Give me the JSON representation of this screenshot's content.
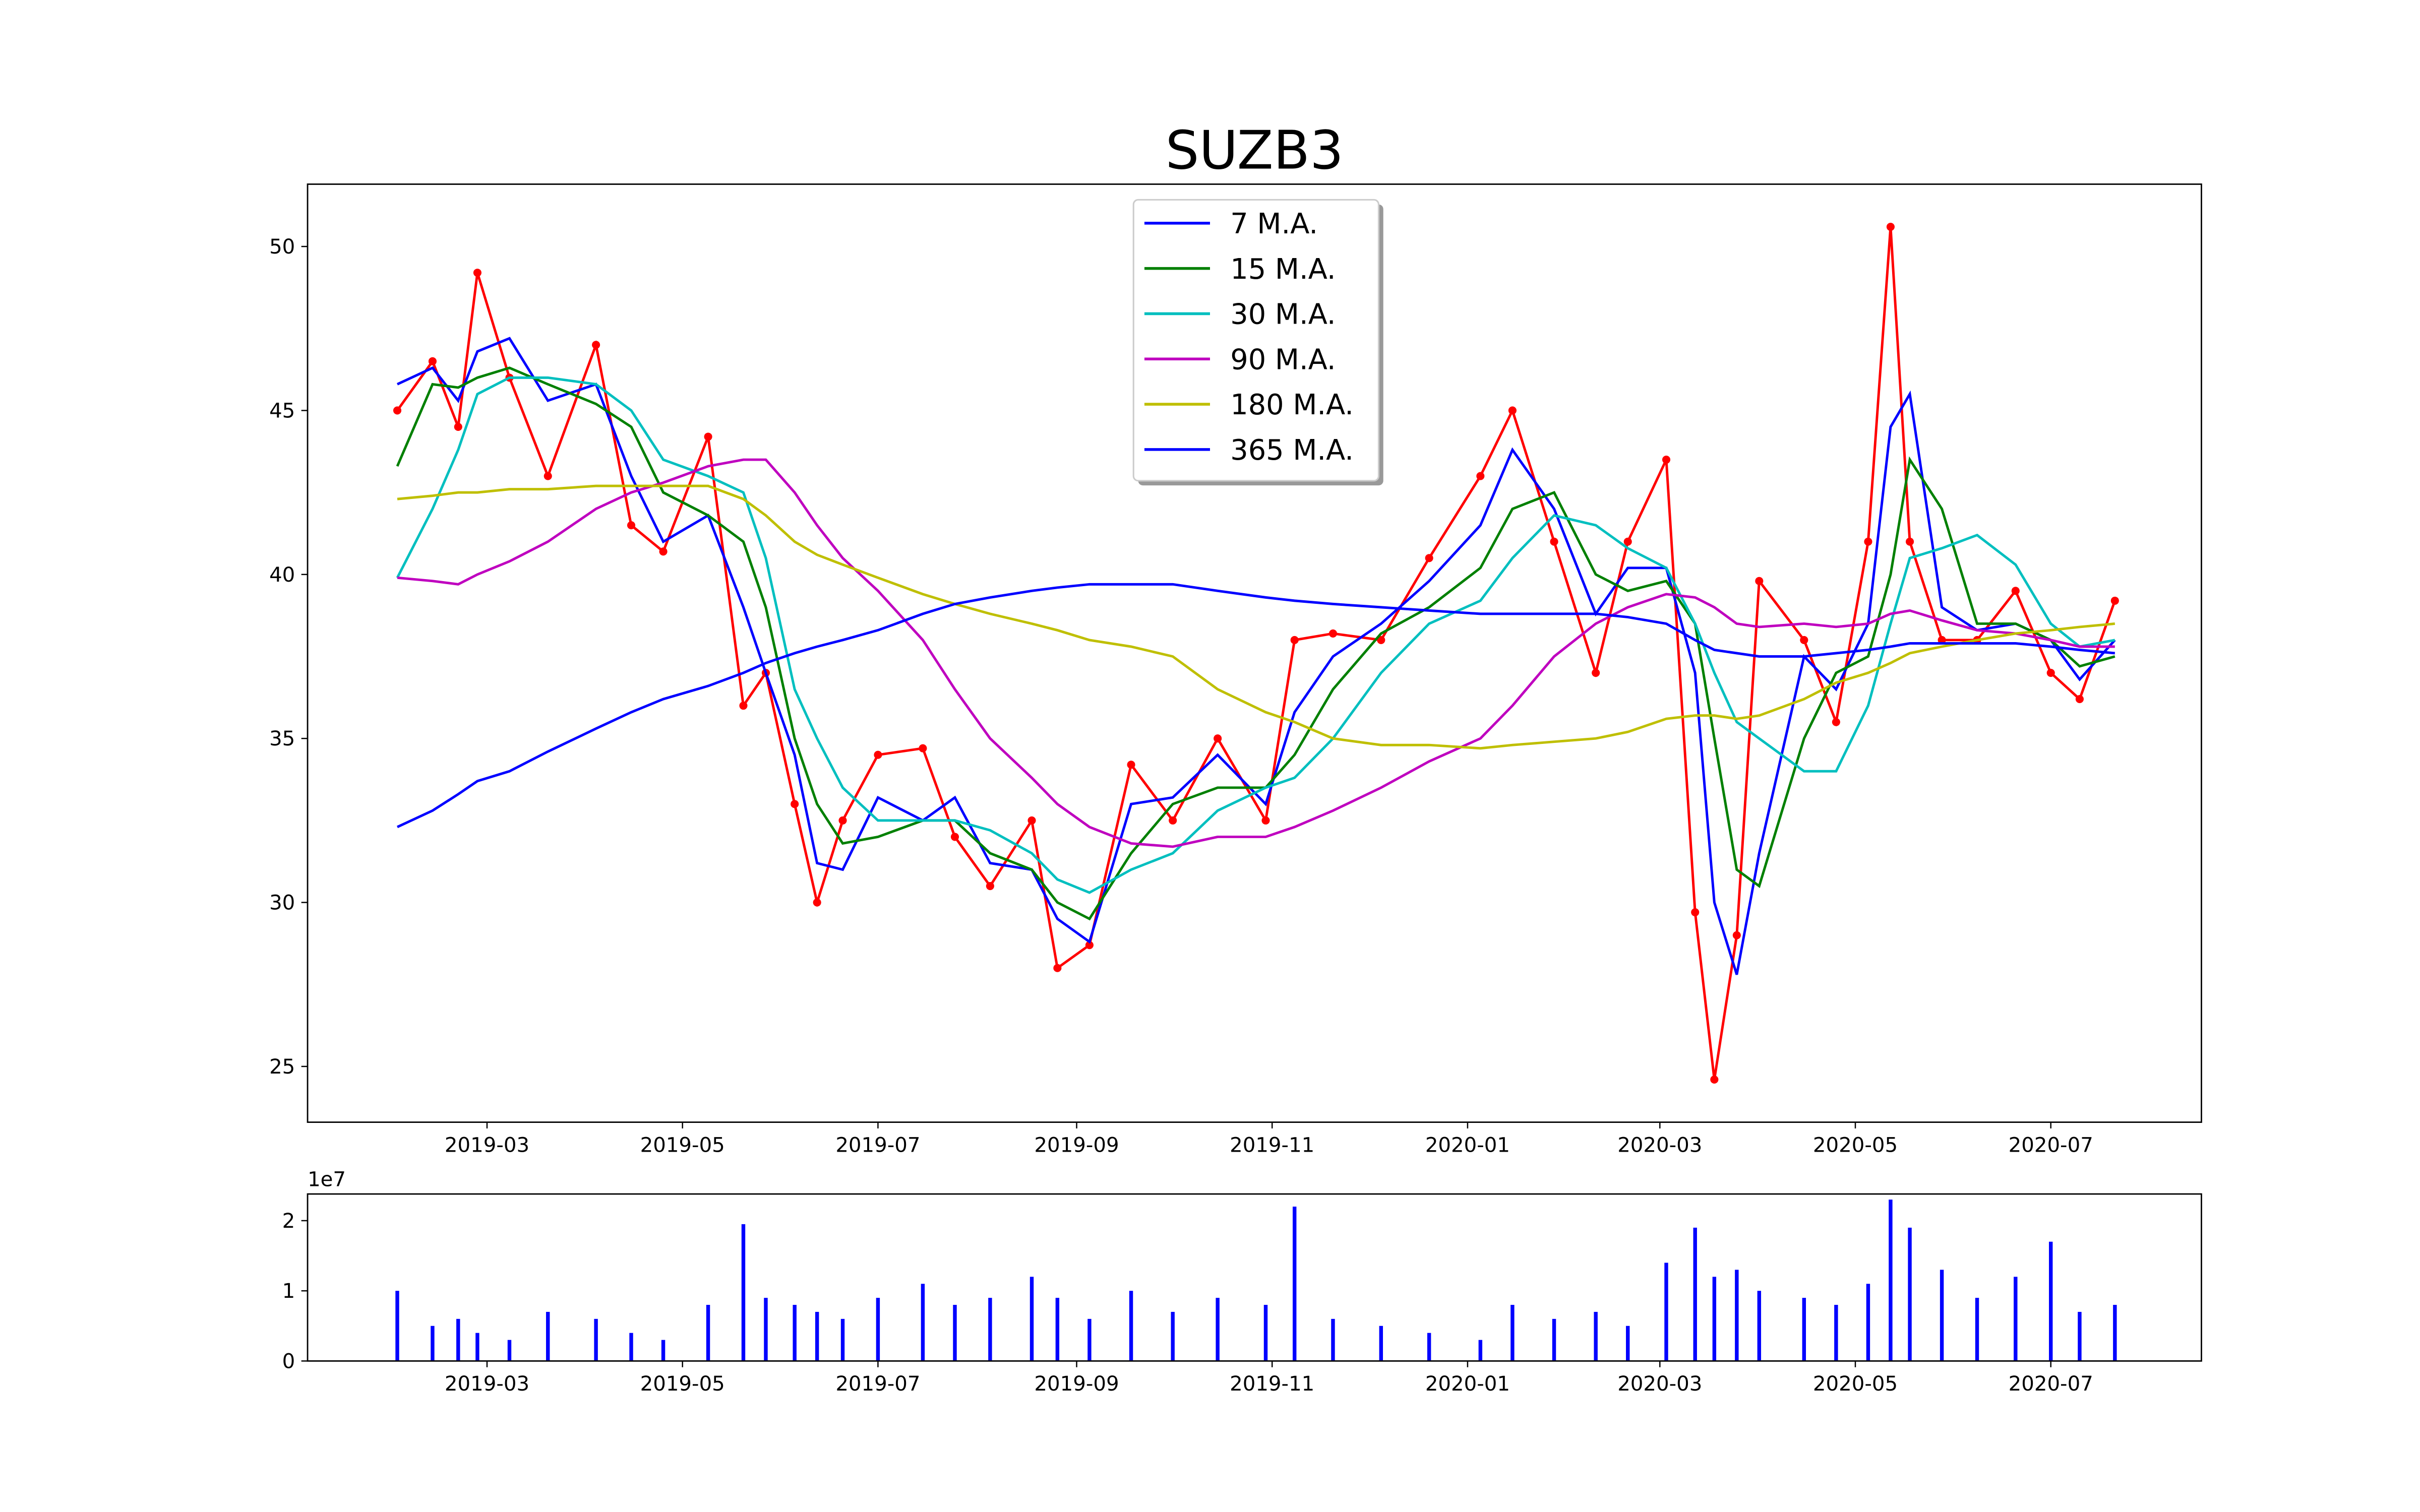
{
  "chart_data": [
    {
      "type": "line",
      "title": "SUZB3",
      "x": [
        "2019-02-01",
        "2019-02-12",
        "2019-02-20",
        "2019-02-26",
        "2019-03-08",
        "2019-03-20",
        "2019-04-04",
        "2019-04-15",
        "2019-04-25",
        "2019-05-09",
        "2019-05-20",
        "2019-05-27",
        "2019-06-05",
        "2019-06-12",
        "2019-06-20",
        "2019-07-01",
        "2019-07-15",
        "2019-07-25",
        "2019-08-05",
        "2019-08-18",
        "2019-08-26",
        "2019-09-05",
        "2019-09-18",
        "2019-10-01",
        "2019-10-15",
        "2019-10-30",
        "2019-11-08",
        "2019-11-20",
        "2019-12-05",
        "2019-12-20",
        "2020-01-05",
        "2020-01-15",
        "2020-01-28",
        "2020-02-10",
        "2020-02-20",
        "2020-03-03",
        "2020-03-12",
        "2020-03-18",
        "2020-03-25",
        "2020-04-01",
        "2020-04-15",
        "2020-04-25",
        "2020-05-05",
        "2020-05-12",
        "2020-05-18",
        "2020-05-28",
        "2020-06-08",
        "2020-06-20",
        "2020-07-01",
        "2020-07-10",
        "2020-07-21"
      ],
      "series": [
        {
          "color": "#ff0000",
          "marker": true,
          "values": [
            45.0,
            46.5,
            44.5,
            49.2,
            46.0,
            43.0,
            47.0,
            41.5,
            40.7,
            44.2,
            36.0,
            37.0,
            33.0,
            30.0,
            32.5,
            34.5,
            34.7,
            32.0,
            30.5,
            32.5,
            28.0,
            28.7,
            34.2,
            32.5,
            35.0,
            32.5,
            38.0,
            38.2,
            38.0,
            40.5,
            43.0,
            45.0,
            41.0,
            37.0,
            41.0,
            43.5,
            29.7,
            24.6,
            29.0,
            39.8,
            38.0,
            35.5,
            41.0,
            50.6,
            41.0,
            38.0,
            38.0,
            39.5,
            37.0,
            36.2,
            39.2
          ]
        },
        {
          "name": "7 M.A.",
          "color": "#0000ff",
          "values": [
            45.8,
            46.3,
            45.3,
            46.8,
            47.2,
            45.3,
            45.8,
            43.0,
            41.0,
            41.8,
            39.0,
            37.0,
            34.5,
            31.2,
            31.0,
            33.2,
            32.5,
            33.2,
            31.2,
            31.0,
            29.5,
            28.8,
            33.0,
            33.2,
            34.5,
            33.0,
            35.8,
            37.5,
            38.5,
            39.8,
            41.5,
            43.8,
            42.0,
            38.8,
            40.2,
            40.2,
            37.0,
            30.0,
            27.8,
            31.5,
            37.5,
            36.5,
            38.5,
            44.5,
            45.5,
            39.0,
            38.3,
            38.5,
            38.0,
            36.8,
            38.0
          ]
        },
        {
          "name": "15 M.A.",
          "color": "#008000",
          "values": [
            43.3,
            45.8,
            45.7,
            46.0,
            46.3,
            45.8,
            45.2,
            44.5,
            42.5,
            41.8,
            41.0,
            39.0,
            35.0,
            33.0,
            31.8,
            32.0,
            32.5,
            32.5,
            31.5,
            31.0,
            30.0,
            29.5,
            31.5,
            33.0,
            33.5,
            33.5,
            34.5,
            36.5,
            38.2,
            39.0,
            40.2,
            42.0,
            42.5,
            40.0,
            39.5,
            39.8,
            38.5,
            35.0,
            31.0,
            30.5,
            35.0,
            37.0,
            37.5,
            40.0,
            43.5,
            42.0,
            38.5,
            38.5,
            38.0,
            37.2,
            37.5
          ]
        },
        {
          "name": "30 M.A.",
          "color": "#00bfbf",
          "values": [
            39.9,
            42.0,
            43.8,
            45.5,
            46.0,
            46.0,
            45.8,
            45.0,
            43.5,
            43.0,
            42.5,
            40.5,
            36.5,
            35.0,
            33.5,
            32.5,
            32.5,
            32.5,
            32.2,
            31.5,
            30.7,
            30.3,
            31.0,
            31.5,
            32.8,
            33.5,
            33.8,
            35.0,
            37.0,
            38.5,
            39.2,
            40.5,
            41.8,
            41.5,
            40.8,
            40.2,
            38.5,
            37.0,
            35.5,
            35.0,
            34.0,
            34.0,
            36.0,
            38.5,
            40.5,
            40.8,
            41.2,
            40.3,
            38.5,
            37.8,
            38.0
          ]
        },
        {
          "name": "90 M.A.",
          "color": "#bf00bf",
          "values": [
            39.9,
            39.8,
            39.7,
            40.0,
            40.4,
            41.0,
            42.0,
            42.5,
            42.8,
            43.3,
            43.5,
            43.5,
            42.5,
            41.5,
            40.5,
            39.5,
            38.0,
            36.5,
            35.0,
            33.8,
            33.0,
            32.3,
            31.8,
            31.7,
            32.0,
            32.0,
            32.3,
            32.8,
            33.5,
            34.3,
            35.0,
            36.0,
            37.5,
            38.5,
            39.0,
            39.4,
            39.3,
            39.0,
            38.5,
            38.4,
            38.5,
            38.4,
            38.5,
            38.8,
            38.9,
            38.6,
            38.3,
            38.2,
            38.0,
            37.8,
            37.8
          ]
        },
        {
          "name": "180 M.A.",
          "color": "#bfbf00",
          "values": [
            42.3,
            42.4,
            42.5,
            42.5,
            42.6,
            42.6,
            42.7,
            42.7,
            42.7,
            42.7,
            42.3,
            41.8,
            41.0,
            40.6,
            40.3,
            39.9,
            39.4,
            39.1,
            38.8,
            38.5,
            38.3,
            38.0,
            37.8,
            37.5,
            36.5,
            35.8,
            35.5,
            35.0,
            34.8,
            34.8,
            34.7,
            34.8,
            34.9,
            35.0,
            35.2,
            35.6,
            35.7,
            35.7,
            35.6,
            35.7,
            36.2,
            36.7,
            37.0,
            37.3,
            37.6,
            37.8,
            38.0,
            38.2,
            38.3,
            38.4,
            38.5
          ]
        },
        {
          "name": "365 M.A.",
          "color": "#0000ff",
          "values": [
            32.3,
            32.8,
            33.3,
            33.7,
            34.0,
            34.6,
            35.3,
            35.8,
            36.2,
            36.6,
            37.0,
            37.3,
            37.6,
            37.8,
            38.0,
            38.3,
            38.8,
            39.1,
            39.3,
            39.5,
            39.6,
            39.7,
            39.7,
            39.7,
            39.5,
            39.3,
            39.2,
            39.1,
            39.0,
            38.9,
            38.8,
            38.8,
            38.8,
            38.8,
            38.7,
            38.5,
            38.0,
            37.7,
            37.6,
            37.5,
            37.5,
            37.6,
            37.7,
            37.8,
            37.9,
            37.9,
            37.9,
            37.9,
            37.8,
            37.7,
            37.6
          ]
        }
      ],
      "xlim": [
        "2019-01-04",
        "2020-08-17"
      ],
      "xticks": [
        {
          "value": "2019-03-01",
          "label": "2019-03"
        },
        {
          "value": "2019-05-01",
          "label": "2019-05"
        },
        {
          "value": "2019-07-01",
          "label": "2019-07"
        },
        {
          "value": "2019-09-01",
          "label": "2019-09"
        },
        {
          "value": "2019-11-01",
          "label": "2019-11"
        },
        {
          "value": "2020-01-01",
          "label": "2020-01"
        },
        {
          "value": "2020-03-01",
          "label": "2020-03"
        },
        {
          "value": "2020-05-01",
          "label": "2020-05"
        },
        {
          "value": "2020-07-01",
          "label": "2020-07"
        }
      ],
      "ylim": [
        23.3,
        51.9
      ],
      "yticks": [
        25,
        30,
        35,
        40,
        45,
        50
      ],
      "legend": "upper center"
    },
    {
      "type": "bar",
      "x": [
        "2019-02-01",
        "2019-02-12",
        "2019-02-20",
        "2019-02-26",
        "2019-03-08",
        "2019-03-20",
        "2019-04-04",
        "2019-04-15",
        "2019-04-25",
        "2019-05-09",
        "2019-05-20",
        "2019-05-27",
        "2019-06-05",
        "2019-06-12",
        "2019-06-20",
        "2019-07-01",
        "2019-07-15",
        "2019-07-25",
        "2019-08-05",
        "2019-08-18",
        "2019-08-26",
        "2019-09-05",
        "2019-09-18",
        "2019-10-01",
        "2019-10-15",
        "2019-10-30",
        "2019-11-08",
        "2019-11-20",
        "2019-12-05",
        "2019-12-20",
        "2020-01-05",
        "2020-01-15",
        "2020-01-28",
        "2020-02-10",
        "2020-02-20",
        "2020-03-03",
        "2020-03-12",
        "2020-03-18",
        "2020-03-25",
        "2020-04-01",
        "2020-04-15",
        "2020-04-25",
        "2020-05-05",
        "2020-05-12",
        "2020-05-18",
        "2020-05-28",
        "2020-06-08",
        "2020-06-20",
        "2020-07-01",
        "2020-07-10",
        "2020-07-21"
      ],
      "values": [
        10000000,
        5000000,
        6000000,
        4000000,
        3000000,
        7000000,
        6000000,
        4000000,
        3000000,
        8000000,
        19500000,
        9000000,
        8000000,
        7000000,
        6000000,
        9000000,
        11000000,
        8000000,
        9000000,
        12000000,
        9000000,
        6000000,
        10000000,
        7000000,
        9000000,
        8000000,
        22000000,
        6000000,
        5000000,
        4000000,
        3000000,
        8000000,
        6000000,
        7000000,
        5000000,
        14000000,
        19000000,
        12000000,
        13000000,
        10000000,
        9000000,
        8000000,
        11000000,
        23000000,
        19000000,
        13000000,
        9000000,
        12000000,
        17000000,
        7000000,
        8000000
      ],
      "color": "#0000ff",
      "xlim": [
        "2019-01-04",
        "2020-08-17"
      ],
      "xticks": [
        {
          "value": "2019-03-01",
          "label": "2019-03"
        },
        {
          "value": "2019-05-01",
          "label": "2019-05"
        },
        {
          "value": "2019-07-01",
          "label": "2019-07"
        },
        {
          "value": "2019-09-01",
          "label": "2019-09"
        },
        {
          "value": "2019-11-01",
          "label": "2019-11"
        },
        {
          "value": "2020-01-01",
          "label": "2020-01"
        },
        {
          "value": "2020-03-01",
          "label": "2020-03"
        },
        {
          "value": "2020-05-01",
          "label": "2020-05"
        },
        {
          "value": "2020-07-01",
          "label": "2020-07"
        }
      ],
      "ylim": [
        0,
        23800000
      ],
      "yticks": [
        0,
        {
          "value": 10000000,
          "label": "1"
        },
        {
          "value": 20000000,
          "label": "2"
        }
      ],
      "offset_label": "1e7"
    }
  ]
}
